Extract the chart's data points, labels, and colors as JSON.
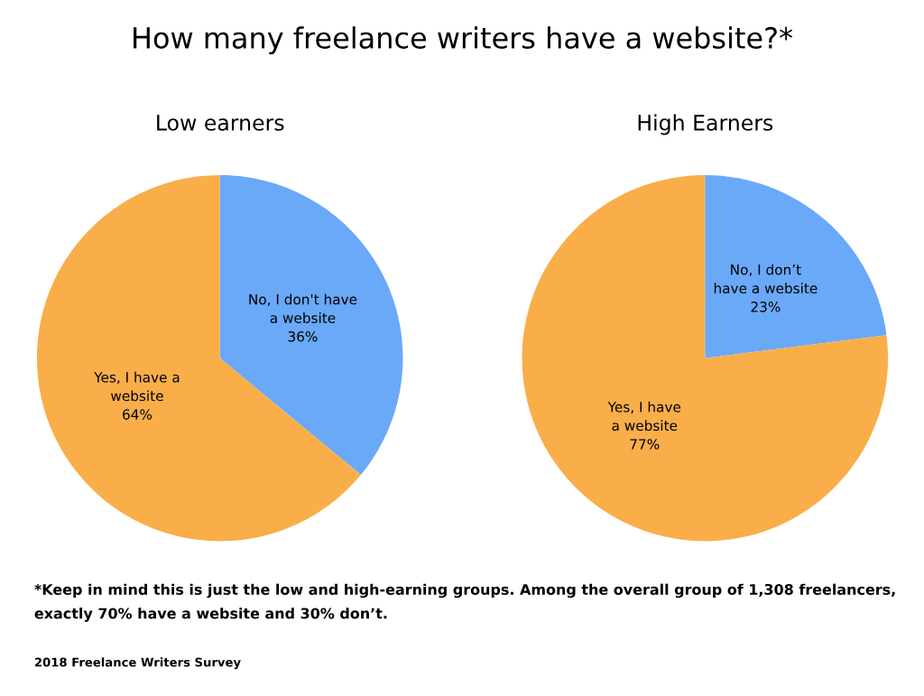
{
  "chart_data": [
    {
      "type": "pie",
      "title": "How many freelance writers have a website?*",
      "subtitle": "Low earners",
      "categories": [
        "No, I don't have\na website",
        "Yes, I have a\nwebsite"
      ],
      "values": [
        36,
        64
      ],
      "value_labels": [
        "36%",
        "64%"
      ],
      "colors": [
        "#6aa8f8",
        "#f9ae4a"
      ],
      "annotations": [
        "*Keep in mind this is just the low and high-earning groups. Among the overall group of 1,308 freelancers,\nexactly 70% have a website and 30% don’t.",
        "2018 Freelance Writers Survey"
      ]
    },
    {
      "type": "pie",
      "subtitle": "High Earners",
      "categories": [
        "No, I don’t\nhave a website",
        "Yes, I have\na website"
      ],
      "values": [
        23,
        77
      ],
      "value_labels": [
        "23%",
        "77%"
      ],
      "colors": [
        "#6aa8f8",
        "#f9ae4a"
      ]
    }
  ]
}
